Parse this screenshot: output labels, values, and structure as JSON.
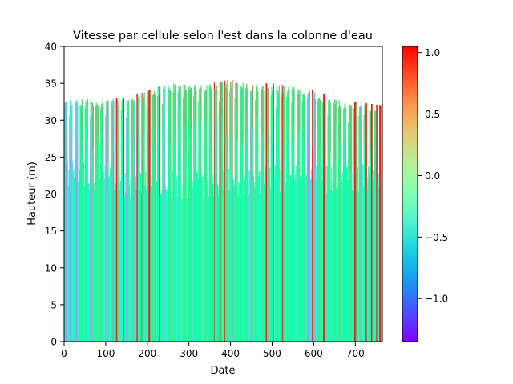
{
  "chart_data": {
    "type": "heatmap",
    "title": "Vitesse par cellule selon l'est dans la colonne d'eau",
    "xlabel": "Date",
    "ylabel": "Hauteur (m)",
    "xlim": [
      0,
      765
    ],
    "ylim": [
      0,
      40
    ],
    "x_ticks": [
      0,
      100,
      200,
      300,
      400,
      500,
      600,
      700
    ],
    "y_ticks": [
      0,
      5,
      10,
      15,
      20,
      25,
      30,
      35,
      40
    ],
    "grid": false,
    "colormap": "rainbow",
    "colorbar": {
      "min": -1.35,
      "max": 1.05,
      "ticks": [
        -1.0,
        -0.5,
        0.0,
        0.5,
        1.0
      ],
      "tick_labels": [
        "−1.0",
        "−0.5",
        "0.0",
        "0.5",
        "1.0"
      ]
    },
    "tidal_period": 12.42,
    "top_height_envelope": {
      "x": [
        0,
        50,
        100,
        150,
        200,
        250,
        300,
        350,
        400,
        450,
        500,
        550,
        600,
        650,
        700,
        765
      ],
      "y": [
        33,
        33,
        33,
        33,
        34,
        35,
        35,
        35,
        35.5,
        35,
        35,
        34.5,
        34,
        33,
        32.5,
        32
      ]
    },
    "dense_top_height_envelope": {
      "x": [
        0,
        100,
        200,
        300,
        400,
        500,
        600,
        700,
        765
      ],
      "y": [
        25,
        24,
        23,
        23,
        23.5,
        24,
        24,
        24,
        24
      ]
    },
    "strong_eastward_events_x": [
      35,
      85,
      110,
      125,
      145,
      160,
      175,
      185,
      205,
      230,
      258,
      270,
      282,
      360,
      375,
      385,
      405,
      445,
      485,
      505,
      525,
      555,
      570,
      595,
      625,
      645,
      700,
      725,
      740,
      752,
      760
    ],
    "strong_westward_events_x": [
      5,
      15,
      20,
      30,
      65,
      100,
      120,
      135,
      150,
      170,
      240,
      445,
      485,
      545,
      585,
      600,
      625,
      680,
      715,
      752
    ]
  }
}
